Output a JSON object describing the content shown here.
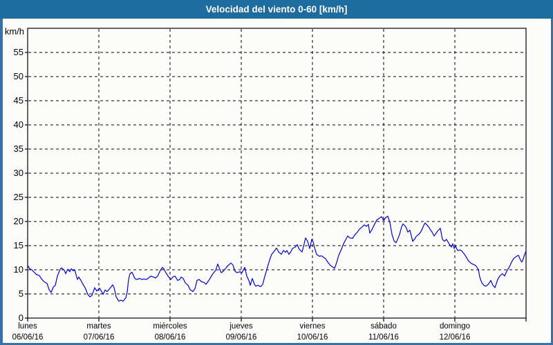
{
  "window": {
    "title": "Velocidad del viento 0-60 [km/h]"
  },
  "colors": {
    "titlebar_bg": "#1e6b9d",
    "titlebar_text": "#ffffff",
    "page_border": "#3a71a5",
    "page_bg": "#fcfdfb",
    "grid": "#000000",
    "axis": "#000000",
    "line": "#0000cc",
    "label_text": "#000000"
  },
  "chart_data": {
    "type": "line",
    "title": "Velocidad del viento 0-60 [km/h]",
    "xlabel": "",
    "ylabel": "km/h",
    "ylim": [
      0,
      60
    ],
    "ytick_step": 5,
    "ytick_labels": [
      "0",
      "5",
      "10",
      "15",
      "20",
      "25",
      "30",
      "35",
      "40",
      "45",
      "50",
      "55"
    ],
    "grid": true,
    "legend": "none",
    "x_axis_days": [
      {
        "name": "lunes",
        "date": "06/06/16"
      },
      {
        "name": "martes",
        "date": "07/06/16"
      },
      {
        "name": "miércoles",
        "date": "08/06/16"
      },
      {
        "name": "jueves",
        "date": "09/06/16"
      },
      {
        "name": "viernes",
        "date": "10/06/16"
      },
      {
        "name": "sábado",
        "date": "11/06/16"
      },
      {
        "name": "domingo",
        "date": "12/06/16"
      }
    ],
    "series": [
      {
        "name": "Velocidad del viento",
        "unit": "km/h",
        "x_unit": "days_since_monday_00h",
        "points": [
          [
            0.0,
            10.9
          ],
          [
            0.029,
            10.2
          ],
          [
            0.058,
            10.0
          ],
          [
            0.097,
            9.4
          ],
          [
            0.126,
            9.0
          ],
          [
            0.165,
            8.8
          ],
          [
            0.194,
            8.1
          ],
          [
            0.233,
            7.5
          ],
          [
            0.272,
            7.2
          ],
          [
            0.301,
            5.9
          ],
          [
            0.33,
            5.3
          ],
          [
            0.359,
            6.4
          ],
          [
            0.388,
            6.8
          ],
          [
            0.417,
            8.7
          ],
          [
            0.456,
            10.1
          ],
          [
            0.476,
            10.4
          ],
          [
            0.515,
            9.9
          ],
          [
            0.534,
            9.2
          ],
          [
            0.563,
            10.1
          ],
          [
            0.592,
            9.6
          ],
          [
            0.612,
            10.2
          ],
          [
            0.641,
            9.8
          ],
          [
            0.66,
            10.0
          ],
          [
            0.699,
            8.0
          ],
          [
            0.718,
            8.5
          ],
          [
            0.748,
            7.8
          ],
          [
            0.777,
            7.0
          ],
          [
            0.806,
            6.3
          ],
          [
            0.845,
            4.9
          ],
          [
            0.874,
            4.4
          ],
          [
            0.903,
            4.7
          ],
          [
            0.942,
            6.3
          ],
          [
            0.971,
            5.6
          ],
          [
            1.01,
            6.2
          ],
          [
            1.039,
            5.5
          ],
          [
            1.058,
            4.9
          ],
          [
            1.087,
            5.8
          ],
          [
            1.117,
            5.5
          ],
          [
            1.146,
            6.0
          ],
          [
            1.194,
            6.9
          ],
          [
            1.214,
            6.3
          ],
          [
            1.243,
            4.4
          ],
          [
            1.282,
            3.5
          ],
          [
            1.311,
            3.7
          ],
          [
            1.34,
            3.5
          ],
          [
            1.379,
            4.2
          ],
          [
            1.398,
            5.4
          ],
          [
            1.417,
            8.0
          ],
          [
            1.437,
            9.2
          ],
          [
            1.466,
            9.5
          ],
          [
            1.505,
            8.2
          ],
          [
            1.534,
            8.0
          ],
          [
            1.573,
            8.2
          ],
          [
            1.602,
            8.0
          ],
          [
            1.631,
            8.1
          ],
          [
            1.67,
            8.0
          ],
          [
            1.699,
            8.3
          ],
          [
            1.728,
            8.7
          ],
          [
            1.767,
            8.5
          ],
          [
            1.796,
            8.3
          ],
          [
            1.825,
            8.7
          ],
          [
            1.864,
            9.9
          ],
          [
            1.893,
            10.5
          ],
          [
            1.913,
            10.2
          ],
          [
            1.942,
            9.4
          ],
          [
            1.971,
            8.7
          ],
          [
            2.01,
            8.0
          ],
          [
            2.039,
            8.5
          ],
          [
            2.068,
            8.7
          ],
          [
            2.107,
            7.8
          ],
          [
            2.136,
            8.0
          ],
          [
            2.155,
            8.5
          ],
          [
            2.184,
            8.2
          ],
          [
            2.214,
            7.3
          ],
          [
            2.252,
            6.8
          ],
          [
            2.282,
            5.9
          ],
          [
            2.32,
            5.5
          ],
          [
            2.35,
            6.1
          ],
          [
            2.379,
            7.8
          ],
          [
            2.408,
            8.0
          ],
          [
            2.447,
            7.5
          ],
          [
            2.476,
            7.4
          ],
          [
            2.505,
            7.0
          ],
          [
            2.544,
            7.8
          ],
          [
            2.573,
            8.5
          ],
          [
            2.602,
            9.2
          ],
          [
            2.641,
            9.9
          ],
          [
            2.67,
            11.2
          ],
          [
            2.699,
            10.1
          ],
          [
            2.718,
            9.4
          ],
          [
            2.748,
            9.7
          ],
          [
            2.786,
            10.4
          ],
          [
            2.816,
            10.9
          ],
          [
            2.854,
            11.4
          ],
          [
            2.883,
            11.0
          ],
          [
            2.913,
            9.7
          ],
          [
            2.942,
            9.4
          ],
          [
            2.981,
            9.6
          ],
          [
            3.01,
            9.4
          ],
          [
            3.049,
            10.5
          ],
          [
            3.078,
            8.7
          ],
          [
            3.107,
            7.8
          ],
          [
            3.126,
            6.8
          ],
          [
            3.155,
            8.2
          ],
          [
            3.184,
            7.0
          ],
          [
            3.204,
            6.6
          ],
          [
            3.233,
            6.8
          ],
          [
            3.272,
            6.5
          ],
          [
            3.301,
            7.0
          ],
          [
            3.33,
            8.6
          ],
          [
            3.369,
            10.6
          ],
          [
            3.398,
            12.0
          ],
          [
            3.427,
            13.2
          ],
          [
            3.466,
            13.9
          ],
          [
            3.495,
            14.5
          ],
          [
            3.524,
            13.7
          ],
          [
            3.563,
            13.2
          ],
          [
            3.592,
            14.0
          ],
          [
            3.621,
            13.6
          ],
          [
            3.641,
            14.0
          ],
          [
            3.67,
            13.2
          ],
          [
            3.699,
            13.8
          ],
          [
            3.718,
            14.4
          ],
          [
            3.757,
            14.7
          ],
          [
            3.786,
            15.2
          ],
          [
            3.816,
            14.2
          ],
          [
            3.854,
            13.7
          ],
          [
            3.883,
            15.3
          ],
          [
            3.903,
            16.6
          ],
          [
            3.932,
            15.9
          ],
          [
            3.961,
            14.4
          ],
          [
            3.99,
            16.3
          ],
          [
            4.01,
            15.8
          ],
          [
            4.029,
            14.6
          ],
          [
            4.058,
            13.2
          ],
          [
            4.097,
            12.8
          ],
          [
            4.126,
            12.9
          ],
          [
            4.155,
            12.6
          ],
          [
            4.184,
            12.3
          ],
          [
            4.214,
            11.6
          ],
          [
            4.252,
            10.9
          ],
          [
            4.282,
            10.6
          ],
          [
            4.311,
            10.3
          ],
          [
            4.34,
            11.5
          ],
          [
            4.369,
            13.0
          ],
          [
            4.408,
            14.3
          ],
          [
            4.437,
            15.4
          ],
          [
            4.466,
            16.2
          ],
          [
            4.495,
            17.0
          ],
          [
            4.524,
            16.6
          ],
          [
            4.563,
            16.5
          ],
          [
            4.592,
            17.2
          ],
          [
            4.631,
            17.8
          ],
          [
            4.66,
            18.4
          ],
          [
            4.699,
            18.9
          ],
          [
            4.728,
            19.3
          ],
          [
            4.757,
            19.0
          ],
          [
            4.786,
            19.4
          ],
          [
            4.805,
            17.6
          ],
          [
            4.835,
            18.3
          ],
          [
            4.854,
            18.9
          ],
          [
            4.903,
            20.3
          ],
          [
            4.951,
            20.8
          ],
          [
            4.971,
            21.0
          ],
          [
            5.0,
            20.2
          ],
          [
            5.029,
            20.8
          ],
          [
            5.058,
            21.1
          ],
          [
            5.087,
            19.8
          ],
          [
            5.117,
            17.3
          ],
          [
            5.146,
            16.0
          ],
          [
            5.175,
            15.6
          ],
          [
            5.204,
            16.6
          ],
          [
            5.223,
            17.3
          ],
          [
            5.252,
            18.9
          ],
          [
            5.272,
            19.5
          ],
          [
            5.311,
            18.9
          ],
          [
            5.34,
            17.8
          ],
          [
            5.369,
            18.2
          ],
          [
            5.408,
            15.9
          ],
          [
            5.437,
            16.4
          ],
          [
            5.456,
            16.9
          ],
          [
            5.505,
            17.5
          ],
          [
            5.534,
            18.2
          ],
          [
            5.563,
            19.2
          ],
          [
            5.583,
            19.7
          ],
          [
            5.612,
            19.2
          ],
          [
            5.631,
            18.9
          ],
          [
            5.66,
            18.2
          ],
          [
            5.68,
            17.8
          ],
          [
            5.709,
            17.0
          ],
          [
            5.738,
            17.6
          ],
          [
            5.757,
            18.0
          ],
          [
            5.796,
            18.6
          ],
          [
            5.825,
            16.3
          ],
          [
            5.854,
            15.9
          ],
          [
            5.883,
            16.3
          ],
          [
            5.922,
            15.3
          ],
          [
            5.951,
            14.7
          ],
          [
            5.971,
            15.4
          ],
          [
            5.99,
            14.4
          ],
          [
            6.01,
            14.9
          ],
          [
            6.039,
            14.0
          ],
          [
            6.068,
            14.1
          ],
          [
            6.097,
            13.9
          ],
          [
            6.136,
            13.2
          ],
          [
            6.165,
            12.5
          ],
          [
            6.194,
            11.8
          ],
          [
            6.233,
            11.3
          ],
          [
            6.262,
            11.1
          ],
          [
            6.291,
            10.9
          ],
          [
            6.33,
            10.1
          ],
          [
            6.35,
            8.5
          ],
          [
            6.379,
            7.3
          ],
          [
            6.408,
            6.8
          ],
          [
            6.437,
            6.6
          ],
          [
            6.476,
            7.1
          ],
          [
            6.505,
            7.8
          ],
          [
            6.534,
            6.8
          ],
          [
            6.563,
            6.3
          ],
          [
            6.602,
            8.0
          ],
          [
            6.631,
            8.7
          ],
          [
            6.67,
            9.2
          ],
          [
            6.699,
            8.7
          ],
          [
            6.728,
            9.7
          ],
          [
            6.767,
            10.6
          ],
          [
            6.796,
            11.6
          ],
          [
            6.825,
            12.3
          ],
          [
            6.864,
            12.8
          ],
          [
            6.893,
            13.0
          ],
          [
            6.922,
            12.0
          ],
          [
            6.942,
            11.6
          ],
          [
            6.961,
            12.3
          ],
          [
            6.981,
            13.2
          ],
          [
            7.0,
            13.9
          ]
        ]
      }
    ]
  }
}
